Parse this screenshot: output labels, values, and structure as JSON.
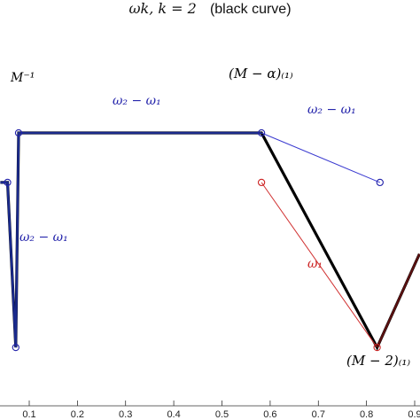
{
  "chart_data": {
    "type": "line",
    "title_math": "ωk, k = 2",
    "title_suffix": "(black curve)",
    "x_ticks": [
      "0.1",
      "0.2",
      "0.3",
      "0.4",
      "0.5",
      "0.6",
      "0.7",
      "0.8",
      "0.9"
    ],
    "xlim": [
      0.04,
      0.91
    ],
    "ylim": [
      0,
      1
    ],
    "grid": false,
    "series": [
      {
        "color": "#000000",
        "points": [
          [
            0.04,
            0.78
          ],
          [
            0.055,
            0.78
          ],
          [
            0.072,
            0.18
          ],
          [
            0.078,
            0.96
          ],
          [
            0.582,
            0.96
          ],
          [
            0.822,
            0.18
          ],
          [
            0.91,
            0.52
          ]
        ]
      },
      {
        "color": "#1a2a8c",
        "points": [
          [
            0.04,
            0.78
          ],
          [
            0.055,
            0.78
          ],
          [
            0.072,
            0.18
          ],
          [
            0.078,
            0.96
          ],
          [
            0.582,
            0.96
          ]
        ]
      },
      {
        "color": "#3a3ad0",
        "points": [
          [
            0.582,
            0.96
          ],
          [
            0.828,
            0.78
          ]
        ]
      },
      {
        "color": "#d03030",
        "points": [
          [
            0.582,
            0.78
          ],
          [
            0.822,
            0.18
          ]
        ]
      },
      {
        "color": "#5a1010",
        "points": [
          [
            0.822,
            0.18
          ],
          [
            0.91,
            0.52
          ]
        ]
      }
    ],
    "markers": [
      {
        "x": 0.055,
        "y": 0.78,
        "color": "#2222aa"
      },
      {
        "x": 0.072,
        "y": 0.18,
        "color": "#2222aa"
      },
      {
        "x": 0.078,
        "y": 0.96,
        "color": "#2222aa"
      },
      {
        "x": 0.582,
        "y": 0.96,
        "color": "#2222aa"
      },
      {
        "x": 0.828,
        "y": 0.78,
        "color": "#2222aa"
      },
      {
        "x": 0.582,
        "y": 0.78,
        "color": "#cc2222"
      },
      {
        "x": 0.822,
        "y": 0.18,
        "color": "#cc2222"
      }
    ],
    "annotations": [
      {
        "text": "M⁻¹",
        "color": "#000000"
      },
      {
        "text": "ω₂ − ω₁",
        "color": "#2222aa"
      },
      {
        "text": "(M − α)₍₁₎",
        "color": "#000000"
      },
      {
        "text": "ω₂ − ω₁",
        "color": "#2222aa"
      },
      {
        "text": "ω₂ − ω₁",
        "color": "#2222aa"
      },
      {
        "text": "ω₁",
        "color": "#cc2222"
      },
      {
        "text": "(M − 2)₍₁₎",
        "color": "#000000"
      }
    ]
  }
}
